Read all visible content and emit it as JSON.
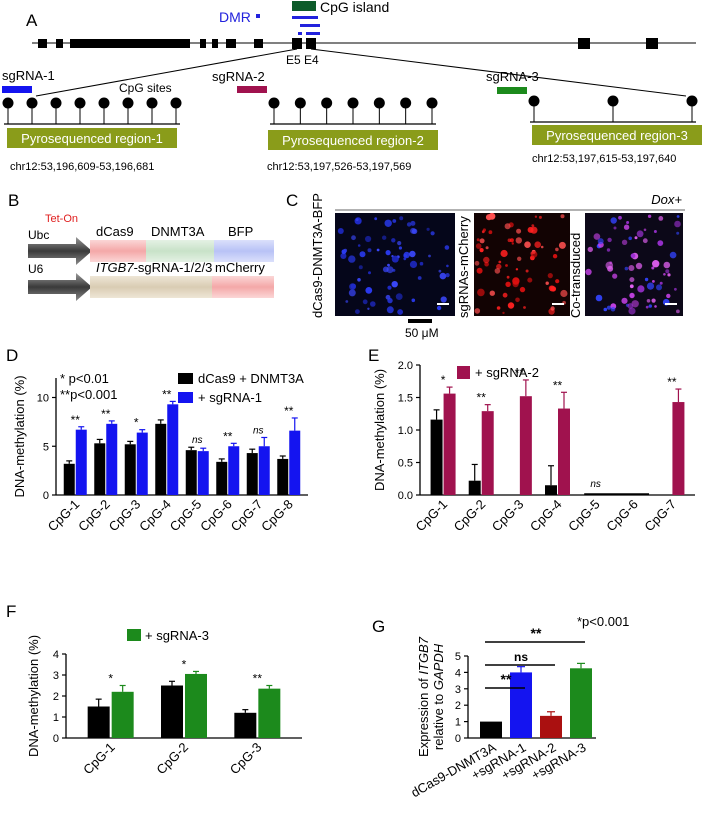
{
  "colors": {
    "black": "#000000",
    "blue": "#1414f0",
    "crimson": "#a0124e",
    "green": "#1c8a1c",
    "olive": "#8a9c1a",
    "darkred": "#aa1010",
    "island": "#0d5b2a",
    "dmr": "#2222dd"
  },
  "panels": {
    "a": "A",
    "b": "B",
    "c": "C",
    "d": "D",
    "e": "E",
    "f": "F",
    "g": "G"
  },
  "panelA": {
    "cpg_island": "CpG island",
    "dmr": "DMR",
    "e5": "E5",
    "e4": "E4",
    "sgrna1": "sgRNA-1",
    "sgrna2": "sgRNA-2",
    "sgrna3": "sgRNA-3",
    "cpg_sites": "CpG sites",
    "region1": "Pyrosequenced region-1",
    "region2": "Pyrosequenced region-2",
    "region3": "Pyrosequenced region-3",
    "coord1": "chr12:53,196,609-53,196,681",
    "coord2": "chr12:53,197,526-53,197,569",
    "coord3": "chr12:53,197,615-53,197,640",
    "region1_sites": 8,
    "region2_sites": 7,
    "region3_sites": 3
  },
  "panelB": {
    "ubc": "Ubc",
    "teton": "Tet-On",
    "dcas9": "dCas9",
    "dnmt3a": "DNMT3A",
    "bfp": "BFP",
    "u6": "U6",
    "itgb7": "ITGB7",
    "sgrna_suffix": "-sgRNA-1/2/3",
    "mcherry": "mCherry"
  },
  "panelC": {
    "dox": "Dox+",
    "label1": "dCas9-DNMT3A-BFP",
    "label2": "sgRNAs-mCherry",
    "label3": "Co-transduced",
    "scale": "50 μM"
  },
  "chart_data": [
    {
      "id": "D",
      "type": "bar",
      "ylabel": "DNA-methylation (%)",
      "ylim": [
        0,
        12
      ],
      "yticks": [
        0,
        5,
        10
      ],
      "categories": [
        "CpG-1",
        "CpG-2",
        "CpG-3",
        "CpG-4",
        "CpG-5",
        "CpG-6",
        "CpG-7",
        "CpG-8"
      ],
      "series": [
        {
          "name": "dCas9 + DNMT3A",
          "color": "#000000",
          "values": [
            3.2,
            5.3,
            5.2,
            7.3,
            4.6,
            3.4,
            4.3,
            3.7
          ],
          "err": [
            0.3,
            0.4,
            0.3,
            0.4,
            0.3,
            0.3,
            0.4,
            0.3
          ]
        },
        {
          "name": "+ sgRNA-1",
          "color": "#1414f0",
          "values": [
            6.7,
            7.3,
            6.4,
            9.3,
            4.5,
            5.0,
            5.0,
            6.6
          ],
          "err": [
            0.3,
            0.3,
            0.3,
            0.3,
            0.3,
            0.3,
            0.9,
            1.3
          ]
        }
      ],
      "sig": [
        "**",
        "**",
        "*",
        "**",
        "ns",
        "**",
        "ns",
        "**"
      ],
      "notes": [
        "* p<0.01",
        "**p<0.001"
      ]
    },
    {
      "id": "E",
      "type": "bar",
      "ylabel": "DNA-methylation (%)",
      "ylim": [
        0,
        2.0
      ],
      "yticks": [
        0.0,
        0.5,
        1.0,
        1.5,
        2.0
      ],
      "categories": [
        "CpG-1",
        "CpG-2",
        "CpG-3",
        "CpG-4",
        "CpG-5",
        "CpG-6",
        "CpG-7"
      ],
      "series": [
        {
          "name": "",
          "color": "#000000",
          "values": [
            1.16,
            0.22,
            0,
            0.15,
            0,
            0,
            0
          ],
          "err": [
            0.15,
            0.25,
            0,
            0.3,
            0,
            0,
            0
          ]
        },
        {
          "name": "+ sgRNA-2",
          "color": "#a0124e",
          "values": [
            1.56,
            1.29,
            1.52,
            1.33,
            0,
            0,
            1.43
          ],
          "err": [
            0.1,
            0.1,
            0.25,
            0.25,
            0,
            0,
            0.2
          ]
        }
      ],
      "sig": [
        "*",
        "**",
        "**",
        "**",
        "ns",
        "",
        "**"
      ]
    },
    {
      "id": "F",
      "type": "bar",
      "ylabel": "DNA-methylation (%)",
      "ylim": [
        0,
        4
      ],
      "yticks": [
        0,
        1,
        2,
        3,
        4
      ],
      "categories": [
        "CpG-1",
        "CpG-2",
        "CpG-3"
      ],
      "series": [
        {
          "name": "",
          "color": "#000000",
          "values": [
            1.5,
            2.5,
            1.2
          ],
          "err": [
            0.35,
            0.2,
            0.15
          ]
        },
        {
          "name": "+ sgRNA-3",
          "color": "#1c8a1c",
          "values": [
            2.2,
            3.05,
            2.35
          ],
          "err": [
            0.3,
            0.12,
            0.15
          ]
        }
      ],
      "sig": [
        "*",
        "*",
        "**"
      ]
    },
    {
      "id": "G",
      "type": "bar",
      "ylabel_line1_pre": "Expression of ",
      "ylabel_line1_gene": "ITGB7",
      "ylabel_line2_pre": "relative to ",
      "ylabel_line2_gene": "GAPDH",
      "ylim": [
        0,
        5
      ],
      "yticks": [
        0,
        1,
        2,
        3,
        4,
        5
      ],
      "categories": [
        "dCas9-DNMT3A",
        "+sgRNA-1",
        "+sgRNA-2",
        "+sgRNA-3"
      ],
      "values": [
        1.0,
        4.0,
        1.35,
        4.25
      ],
      "err": [
        0,
        0.35,
        0.25,
        0.3
      ],
      "colors": [
        "#000000",
        "#1414f0",
        "#aa1010",
        "#1c8a1c"
      ],
      "brackets": [
        {
          "to": 3,
          "label": "**"
        },
        {
          "to": 2,
          "label": "ns"
        },
        {
          "to": 1,
          "label": "**"
        }
      ],
      "note": "*p<0.001"
    }
  ]
}
